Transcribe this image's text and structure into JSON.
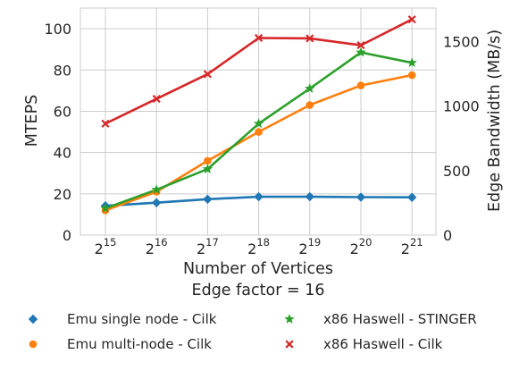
{
  "chart_data": {
    "type": "line",
    "x": [
      "2^15",
      "2^16",
      "2^17",
      "2^18",
      "2^19",
      "2^20",
      "2^21"
    ],
    "x_ticks": [
      {
        "base": "2",
        "exp": "15"
      },
      {
        "base": "2",
        "exp": "16"
      },
      {
        "base": "2",
        "exp": "17"
      },
      {
        "base": "2",
        "exp": "18"
      },
      {
        "base": "2",
        "exp": "19"
      },
      {
        "base": "2",
        "exp": "20"
      },
      {
        "base": "2",
        "exp": "21"
      }
    ],
    "xlabel": "Number of Vertices",
    "xlabel2": "Edge factor = 16",
    "ylabel": "MTEPS",
    "ylim": [
      0,
      110
    ],
    "yticks": [
      0,
      20,
      40,
      60,
      80,
      100
    ],
    "y2label": "Edge Bandwidth (MB/s)",
    "y2lim": [
      0,
      1760
    ],
    "y2ticks": [
      0,
      500,
      1000,
      1500
    ],
    "grid": true,
    "legend_position": "bottom",
    "series": [
      {
        "name": "Emu single node - Cilk",
        "color": "#1f77b4",
        "marker": "diamond",
        "values": [
          14.2,
          15.7,
          17.4,
          18.6,
          18.6,
          18.4,
          18.3
        ]
      },
      {
        "name": "Emu multi-node - Cilk",
        "color": "#ff7f0e",
        "marker": "circle",
        "values": [
          12.0,
          21.0,
          36.0,
          50.0,
          63.0,
          72.5,
          77.5
        ]
      },
      {
        "name": "x86 Haswell - STINGER",
        "color": "#2ca02c",
        "marker": "star",
        "values": [
          13.0,
          22.0,
          32.0,
          54.0,
          71.0,
          88.5,
          83.5
        ]
      },
      {
        "name": "x86 Haswell - Cilk",
        "color": "#d62728",
        "marker": "x",
        "values": [
          54.0,
          66.0,
          78.0,
          95.5,
          95.3,
          92.0,
          104.5
        ]
      }
    ]
  }
}
